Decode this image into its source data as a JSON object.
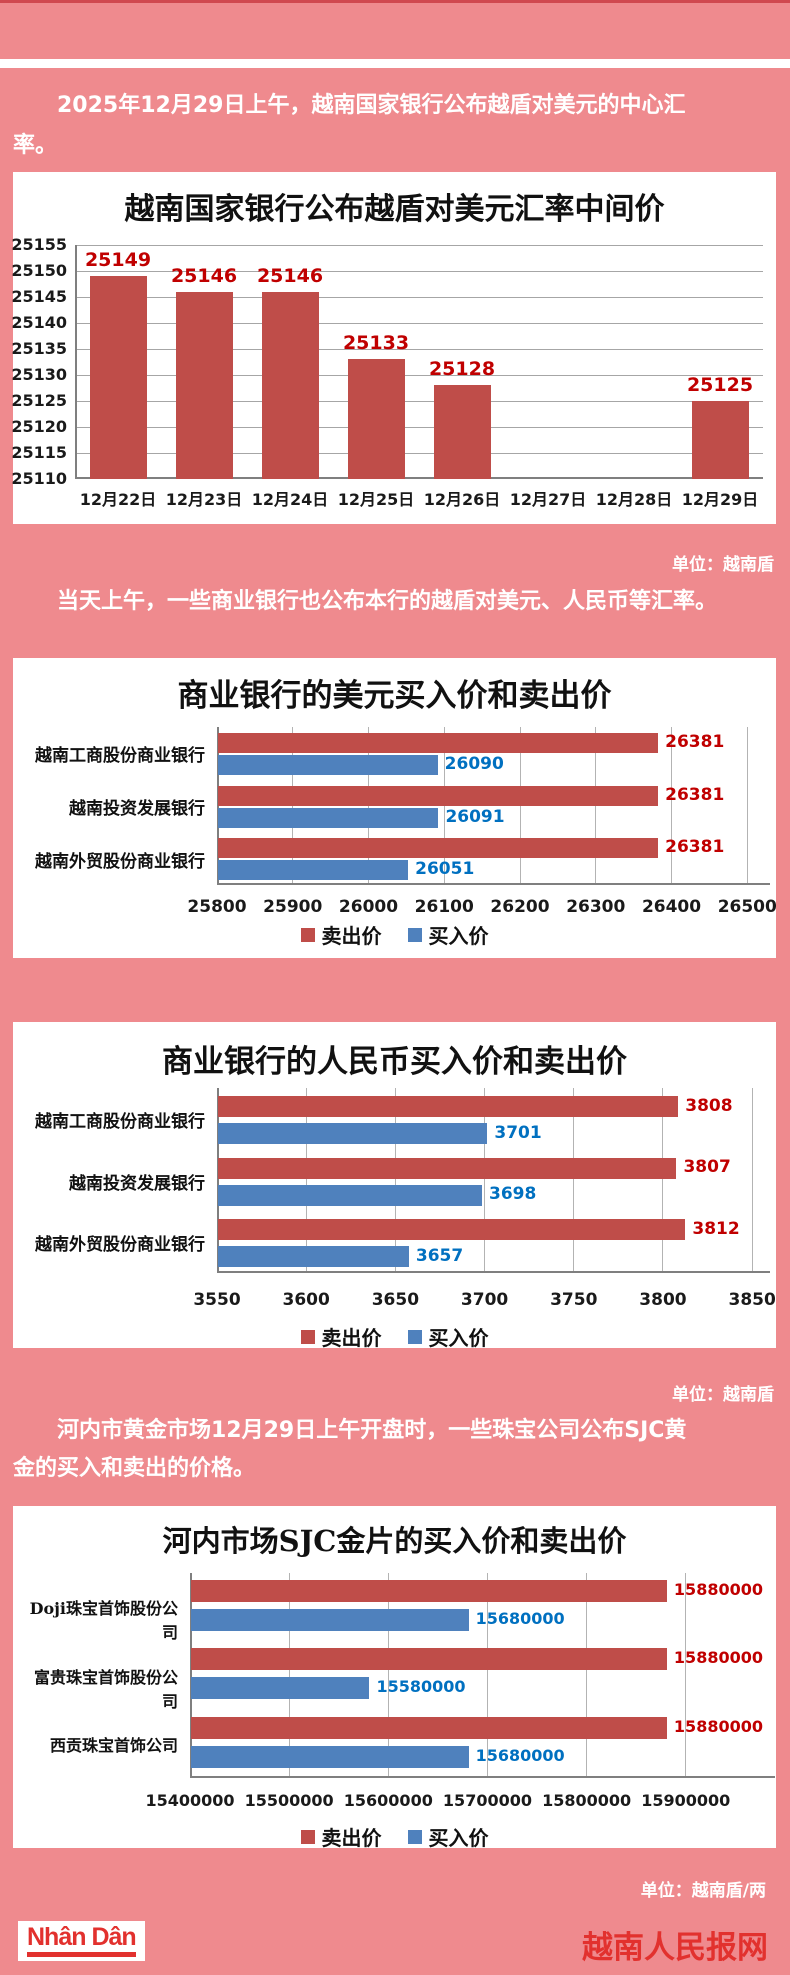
{
  "page": {
    "bg_color": "#ef8a8e",
    "top_strip_color": "#d0484f",
    "brand_red": "#e2312e"
  },
  "paragraphs": {
    "p1_line1": "2025年12月29日上午，越南国家银行公布越盾对美元的中心汇",
    "p1_line2": "率。",
    "p2": "当天上午，一些商业银行也公布本行的越盾对美元、人民币等汇率。",
    "p3_line1": "河内市黄金市场12月29日上午开盘时，一些珠宝公司公布SJC黄",
    "p3_line2": "金的买入和卖出的价格。"
  },
  "captions": {
    "unit1": "单位：越南盾",
    "unit2": "单位：越南盾",
    "unit3": "单位：越南盾/两"
  },
  "footer": {
    "logo_text": "Nhân Dân",
    "site_name": "越南人民报网"
  },
  "colors": {
    "bar_red": "#bf4d49",
    "bar_blue": "#4f81bd",
    "label_red": "#c00000",
    "label_blue": "#0070c0"
  },
  "chart_data": [
    {
      "type": "bar",
      "title": "越南国家银行公布越盾对美元汇率中间价",
      "categories": [
        "12月22日",
        "12月23日",
        "12月24日",
        "12月25日",
        "12月26日",
        "12月27日",
        "12月28日",
        "12月29日"
      ],
      "values": [
        25149,
        25146,
        25146,
        25133,
        25128,
        null,
        null,
        25125
      ],
      "ylim": [
        25110,
        25155
      ],
      "ytick_step": 5,
      "grid": true,
      "unit": "单位：越南盾"
    },
    {
      "type": "bar-horizontal",
      "title": "商业银行的美元买入价和卖出价",
      "categories": [
        "越南工商股份商业银行",
        "越南投资发展银行",
        "越南外贸股份商业银行"
      ],
      "series": [
        {
          "name": "卖出价",
          "color": "#bf4d49",
          "label_color": "#c00000",
          "values": [
            26381,
            26381,
            26381
          ]
        },
        {
          "name": "买入价",
          "color": "#4f81bd",
          "label_color": "#0070c0",
          "values": [
            26090,
            26091,
            26051
          ]
        }
      ],
      "xlim": [
        25800,
        26530
      ],
      "xticks": [
        25800,
        25900,
        26000,
        26100,
        26200,
        26300,
        26400,
        26500
      ],
      "grid": true,
      "legend_position": "bottom"
    },
    {
      "type": "bar-horizontal",
      "title": "商业银行的人民币买入价和卖出价",
      "categories": [
        "越南工商股份商业银行",
        "越南投资发展银行",
        "越南外贸股份商业银行"
      ],
      "series": [
        {
          "name": "卖出价",
          "color": "#bf4d49",
          "label_color": "#c00000",
          "values": [
            3808,
            3807,
            3812
          ]
        },
        {
          "name": "买入价",
          "color": "#4f81bd",
          "label_color": "#0070c0",
          "values": [
            3701,
            3698,
            3657
          ]
        }
      ],
      "xlim": [
        3550,
        3860
      ],
      "xticks": [
        3550,
        3600,
        3650,
        3700,
        3750,
        3800,
        3850
      ],
      "grid": true,
      "legend_position": "bottom",
      "unit": "单位：越南盾"
    },
    {
      "type": "bar-horizontal",
      "title": "河内市场SJC金片的买入价和卖出价",
      "categories": [
        "Doji珠宝首饰股份公司",
        "富贵珠宝首饰股份公司",
        "西贡珠宝首饰公司"
      ],
      "series": [
        {
          "name": "卖出价",
          "color": "#bf4d49",
          "label_color": "#c00000",
          "values": [
            15880000,
            15880000,
            15880000
          ]
        },
        {
          "name": "买入价",
          "color": "#4f81bd",
          "label_color": "#0070c0",
          "values": [
            15680000,
            15580000,
            15680000
          ]
        }
      ],
      "xlim": [
        15400000,
        15990000
      ],
      "xticks": [
        15400000,
        15500000,
        15600000,
        15700000,
        15800000,
        15900000
      ],
      "grid": true,
      "legend_position": "bottom",
      "unit": "单位：越南盾/两"
    }
  ]
}
